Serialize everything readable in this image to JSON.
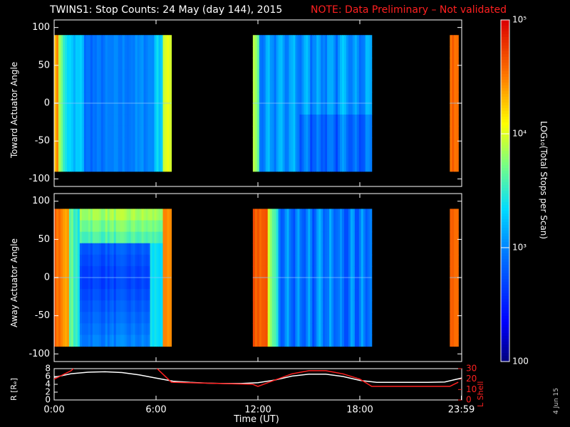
{
  "title": "TWINS1: Stop Counts: 24 May (day 144), 2015",
  "note": "NOTE: Data Preliminary – Not validated",
  "date_stamp": "4 Jun 15",
  "colors": {
    "background": "#000000",
    "note_red": "#ff2020",
    "r_line": "#ffffff",
    "lshell_line": "#ff2020"
  },
  "colorbar": {
    "label": "LOG₁₀(Total Stops per Scan)",
    "ticks": [
      "10⁵",
      "10⁴",
      "10³",
      "100"
    ],
    "tick_values": [
      100000,
      10000,
      1000,
      100
    ],
    "scale": "log",
    "range": [
      100,
      100000
    ]
  },
  "chart_data": [
    {
      "type": "heatmap",
      "ylabel": "Toward Actuator Angle",
      "ylim": [
        -110,
        110
      ],
      "yticks": [
        "100",
        "50",
        "0",
        "-50",
        "-100"
      ],
      "ytick_values": [
        100,
        50,
        0,
        -50,
        -100
      ],
      "xlim": [
        0,
        24
      ],
      "data_extent": [
        -90,
        90
      ],
      "segments": [
        {
          "start": 0.0,
          "end": 6.9,
          "profile": "toward1"
        },
        {
          "start": 11.7,
          "end": 18.7,
          "profile": "toward2"
        },
        {
          "start": 23.3,
          "end": 23.8,
          "profile": "edge"
        }
      ]
    },
    {
      "type": "heatmap",
      "ylabel": "Away Actuator Angle",
      "ylim": [
        -110,
        110
      ],
      "yticks": [
        "100",
        "50",
        "0",
        "-50",
        "-100"
      ],
      "ytick_values": [
        100,
        50,
        0,
        -50,
        -100
      ],
      "xlim": [
        0,
        24
      ],
      "data_extent": [
        -90,
        90
      ],
      "segments": [
        {
          "start": 0.0,
          "end": 6.9,
          "profile": "away1"
        },
        {
          "start": 11.7,
          "end": 18.7,
          "profile": "away2"
        },
        {
          "start": 23.3,
          "end": 23.8,
          "profile": "edge"
        }
      ]
    },
    {
      "type": "line",
      "ylabel_left": "R [Rₑ]",
      "ylabel_right": "L Shell",
      "xlabel": "Time (UT)",
      "xticks": [
        "0:00",
        "6:00",
        "12:00",
        "18:00",
        "23:59"
      ],
      "xtick_values": [
        0,
        6,
        12,
        18,
        23.98
      ],
      "xlim": [
        0,
        24
      ],
      "left_ylim": [
        0,
        8
      ],
      "left_yticks": [
        "0",
        "2",
        "4",
        "6",
        "8"
      ],
      "right_ylim": [
        0,
        30
      ],
      "right_yticks": [
        "0",
        "10",
        "20",
        "30"
      ],
      "series": [
        {
          "axis": "left",
          "color": "#ffffff",
          "x": [
            0,
            1,
            2,
            3,
            4,
            5,
            6,
            7,
            8,
            9,
            10,
            11,
            12,
            13,
            14,
            15,
            16,
            17,
            18,
            19,
            20,
            21,
            22,
            23,
            24
          ],
          "y": [
            5.8,
            6.7,
            7.1,
            7.2,
            7.0,
            6.4,
            5.6,
            4.8,
            4.5,
            4.3,
            4.2,
            4.2,
            4.4,
            5.1,
            6.1,
            6.6,
            6.6,
            6.0,
            5.0,
            4.5,
            4.5,
            4.5,
            4.5,
            4.6,
            5.6
          ]
        },
        {
          "axis": "right",
          "color": "#ff2020",
          "x": [
            0,
            1,
            1.2,
            6.0,
            6.9,
            11.7,
            12.0,
            13.0,
            14.0,
            15.0,
            16.0,
            17.0,
            18.0,
            18.7,
            23.3,
            23.8
          ],
          "y": [
            20,
            28,
            31,
            31,
            17,
            15,
            13,
            19,
            25,
            28,
            28,
            25,
            20,
            13,
            13,
            17
          ]
        }
      ]
    }
  ]
}
